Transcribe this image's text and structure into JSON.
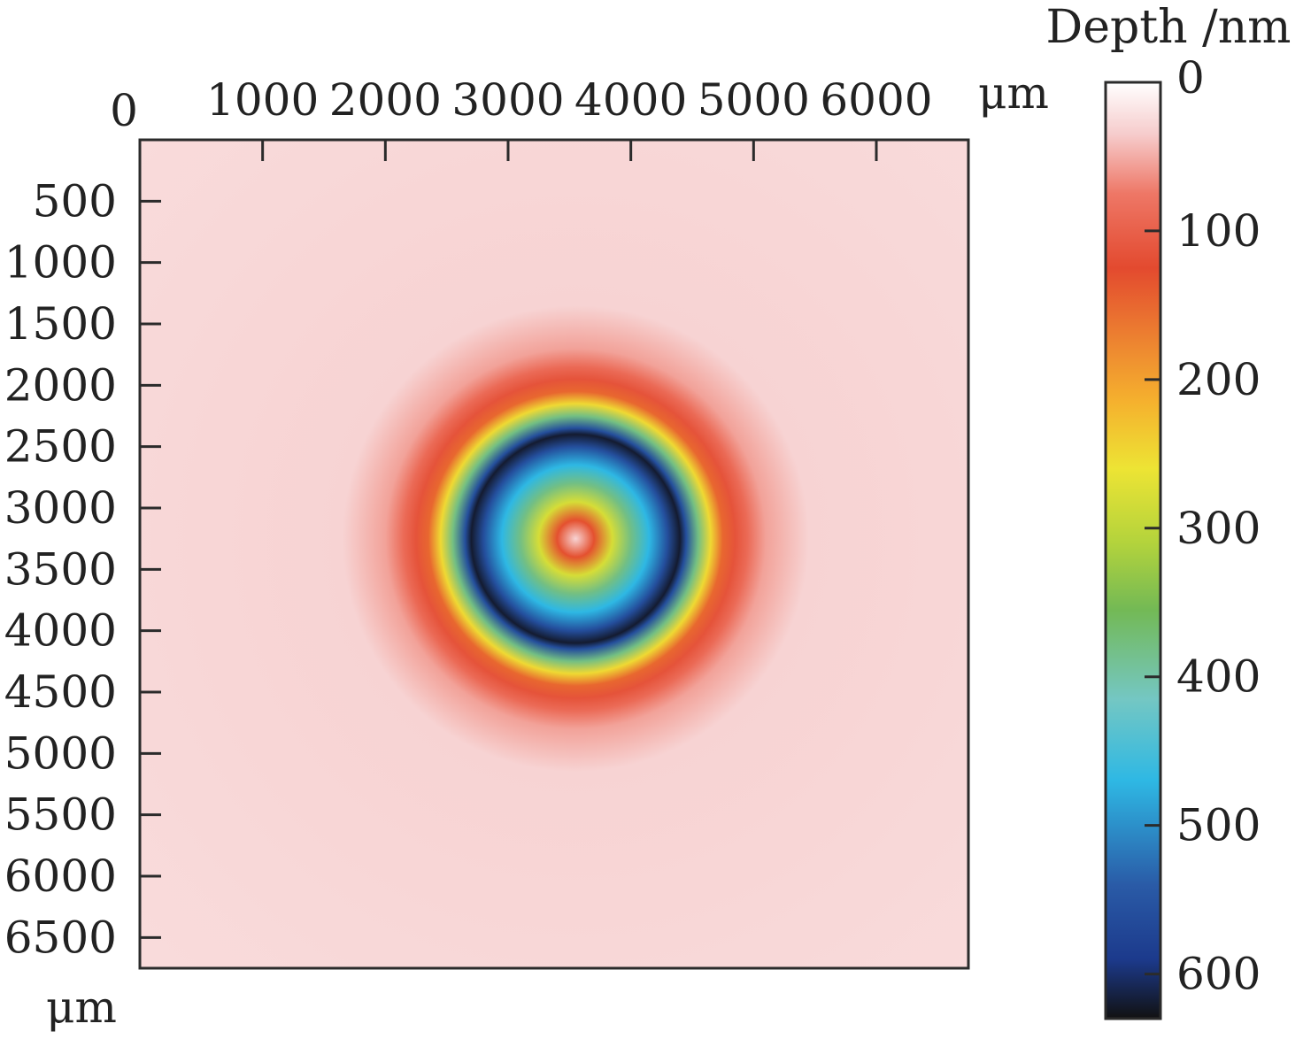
{
  "chart_data": {
    "type": "heatmap",
    "title": "",
    "xlabel": "μm",
    "ylabel": "μm",
    "x_origin_label": "0",
    "xlim": [
      0,
      6750
    ],
    "ylim": [
      0,
      6750
    ],
    "x_ticks": [
      1000,
      2000,
      3000,
      4000,
      5000,
      6000
    ],
    "y_ticks": [
      500,
      1000,
      1500,
      2000,
      2500,
      3000,
      3500,
      4000,
      4500,
      5000,
      5500,
      6000,
      6500
    ],
    "x_tick_labels": [
      "1000",
      "2000",
      "3000",
      "4000",
      "5000",
      "6000"
    ],
    "y_tick_labels": [
      "500",
      "1000",
      "1500",
      "2000",
      "2500",
      "3000",
      "3500",
      "4000",
      "4500",
      "5000",
      "5500",
      "6000",
      "6500"
    ],
    "y_direction": "down",
    "grid": false,
    "pattern": {
      "shape": "concentric rings",
      "center": [
        3550,
        3250
      ],
      "radial_profile": [
        {
          "r": 0,
          "depth": 30
        },
        {
          "r": 150,
          "depth": 130
        },
        {
          "r": 300,
          "depth": 280
        },
        {
          "r": 450,
          "depth": 380
        },
        {
          "r": 600,
          "depth": 470
        },
        {
          "r": 750,
          "depth": 560
        },
        {
          "r": 850,
          "depth": 620
        },
        {
          "r": 900,
          "depth": 560
        },
        {
          "r": 1000,
          "depth": 380
        },
        {
          "r": 1100,
          "depth": 250
        },
        {
          "r": 1200,
          "depth": 150
        },
        {
          "r": 1300,
          "depth": 115
        },
        {
          "r": 1400,
          "depth": 90
        },
        {
          "r": 1550,
          "depth": 55
        },
        {
          "r": 1900,
          "depth": 30
        },
        {
          "r": 4800,
          "depth": 25
        }
      ]
    },
    "colorbar": {
      "title": "Depth /nm",
      "range": [
        0,
        630
      ],
      "ticks": [
        0,
        100,
        200,
        300,
        400,
        500,
        600
      ],
      "tick_labels": [
        "0",
        "100",
        "200",
        "300",
        "400",
        "500",
        "600"
      ],
      "colors": [
        {
          "value": 0,
          "color": "#ffffff"
        },
        {
          "value": 35,
          "color": "#f6cccc"
        },
        {
          "value": 75,
          "color": "#ee7766"
        },
        {
          "value": 125,
          "color": "#e34a2f"
        },
        {
          "value": 180,
          "color": "#ee8a30"
        },
        {
          "value": 215,
          "color": "#f5b12e"
        },
        {
          "value": 260,
          "color": "#ede434"
        },
        {
          "value": 310,
          "color": "#b3d33c"
        },
        {
          "value": 355,
          "color": "#73b955"
        },
        {
          "value": 415,
          "color": "#74c7c3"
        },
        {
          "value": 470,
          "color": "#2eb8e4"
        },
        {
          "value": 540,
          "color": "#2a5ba7"
        },
        {
          "value": 590,
          "color": "#1c3a8c"
        },
        {
          "value": 630,
          "color": "#111111"
        }
      ]
    }
  }
}
